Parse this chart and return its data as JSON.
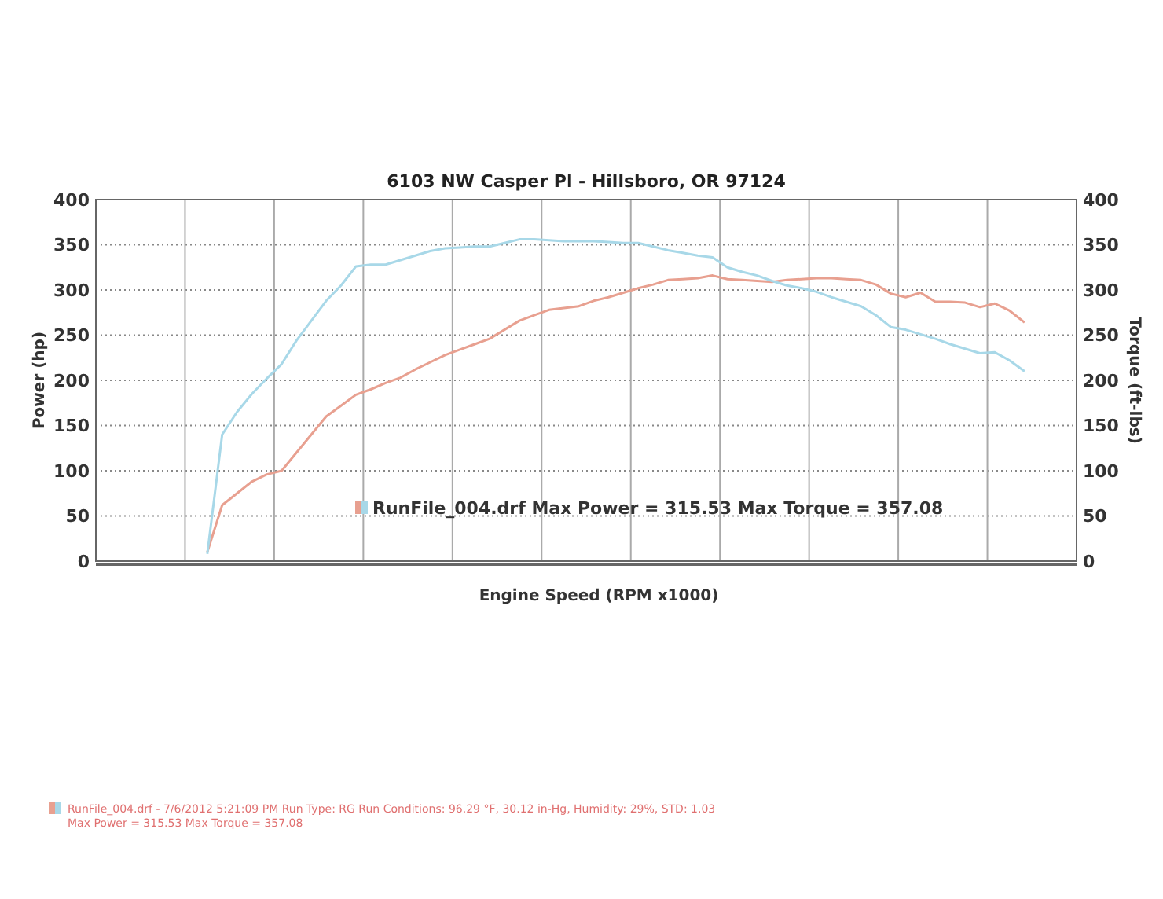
{
  "chart_data": {
    "type": "line",
    "title": "6103 NW Casper Pl - Hillsboro, OR 97124",
    "xlabel": "Engine Speed (RPM x1000)",
    "ylabel": "Power (hp)",
    "y2label": "Torque (ft-lbs)",
    "categories": [
      null,
      null,
      null,
      null,
      null,
      null,
      null,
      null,
      null,
      null,
      null,
      null,
      null,
      null,
      null,
      null,
      null,
      null,
      null,
      null,
      null,
      null,
      null,
      null,
      null,
      null,
      null,
      null,
      null,
      null,
      null,
      null,
      null,
      null,
      null,
      null,
      null,
      null,
      null,
      null,
      null,
      null,
      null,
      null,
      null,
      null,
      null,
      null,
      null,
      null,
      null,
      null,
      null,
      null,
      null,
      null,
      null,
      null,
      null,
      null,
      null,
      null,
      null,
      null,
      null,
      null
    ],
    "series": [
      {
        "color": "#e8a090",
        "values": [
          null,
          null,
          null,
          null,
          null,
          null,
          null,
          10,
          62,
          75,
          88,
          96,
          100,
          120,
          140,
          160,
          172,
          184,
          190,
          197,
          203,
          212,
          220,
          228,
          234,
          240,
          246,
          256,
          266,
          272,
          278,
          280,
          282,
          288,
          292,
          297,
          302,
          306,
          311,
          312,
          313,
          316,
          312,
          311,
          310,
          309,
          311,
          312,
          313,
          313,
          312,
          311,
          306,
          296,
          292,
          297,
          287,
          287,
          286,
          281,
          285,
          277,
          264,
          null,
          null,
          null
        ]
      },
      {
        "color": "#a8d8e8",
        "values": [
          null,
          null,
          null,
          null,
          null,
          null,
          null,
          8,
          140,
          165,
          185,
          202,
          218,
          244,
          266,
          288,
          305,
          326,
          328,
          328,
          333,
          338,
          343,
          346,
          347,
          348,
          348,
          352,
          356,
          356,
          355,
          354,
          354,
          354,
          353,
          352,
          352,
          348,
          344,
          341,
          338,
          336,
          325,
          320,
          316,
          310,
          305,
          302,
          298,
          292,
          287,
          282,
          272,
          259,
          256,
          251,
          246,
          240,
          235,
          230,
          231,
          222,
          210,
          null,
          null,
          null
        ]
      }
    ],
    "ylim": [
      0,
      400
    ],
    "yticks": [
      0,
      50,
      100,
      150,
      200,
      250,
      300,
      350,
      400
    ],
    "y2lim": [
      0,
      400
    ],
    "y2ticks": [
      0,
      50,
      100,
      150,
      200,
      250,
      300,
      350,
      400
    ],
    "grid": true,
    "annotations": [
      "RunFile_004.drf Max Power = 315.53     Max Torque = 357.08",
      "RunFile_004.drf - 7/6/2012 5:21:09 PM  Run Type: RG  Run Conditions: 96.29 °F, 30.12 in-Hg,  Humidity: 29%, STD: 1.03",
      "Max Power = 315.53  Max Torque = 357.08"
    ]
  }
}
